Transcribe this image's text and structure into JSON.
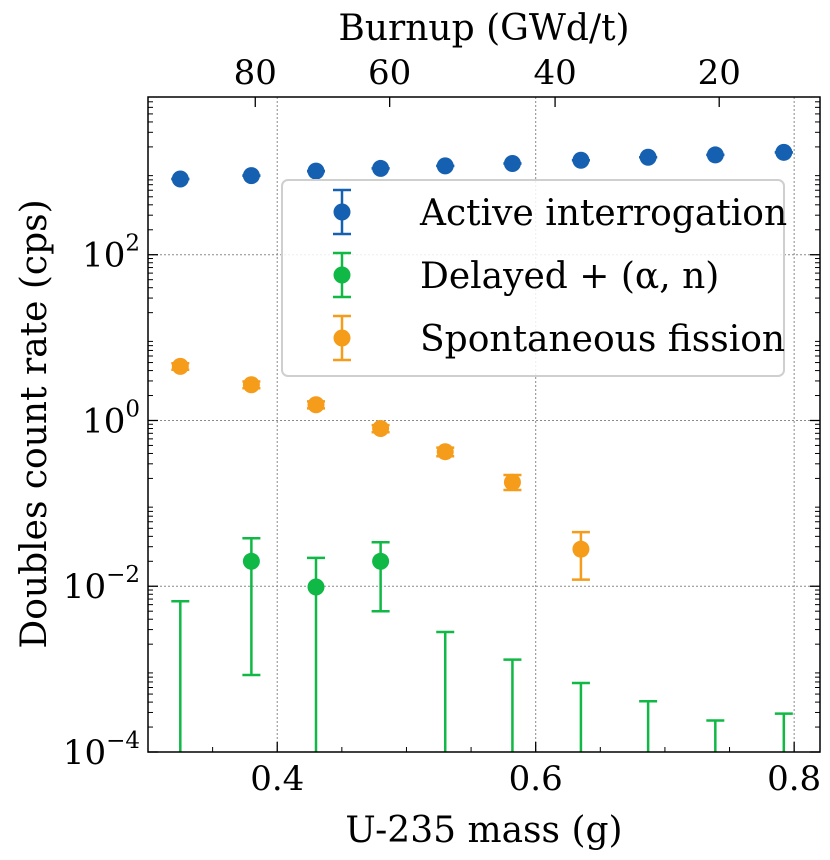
{
  "chart_data": {
    "type": "scatter",
    "xlabel": "U-235 mass (g)",
    "ylabel": "Doubles count rate (cps)",
    "top_xlabel": "Burnup (GWd/t)",
    "x_scale": "linear",
    "y_scale": "log",
    "xlim": [
      0.3,
      0.82
    ],
    "ylim": [
      0.0001,
      8000
    ],
    "grid": true,
    "legend_position": "upper-right",
    "x_ticks": [
      0.4,
      0.6,
      0.8
    ],
    "x_tick_labels": [
      "0.4",
      "0.6",
      "0.8"
    ],
    "y_ticks": [
      0.0001,
      0.01,
      1,
      100
    ],
    "y_tick_labels": [
      {
        "base": "10",
        "exp": "−4"
      },
      {
        "base": "10",
        "exp": "−2"
      },
      {
        "base": "10",
        "exp": "0"
      },
      {
        "base": "10",
        "exp": "2"
      }
    ],
    "top_ticks": [
      {
        "x": 0.383,
        "label": "80"
      },
      {
        "x": 0.487,
        "label": "60"
      },
      {
        "x": 0.615,
        "label": "40"
      },
      {
        "x": 0.742,
        "label": "20"
      }
    ],
    "series": [
      {
        "name": "Active interrogation",
        "color": "#1560b0",
        "points": [
          {
            "x": 0.325,
            "y": 820,
            "lo": 820,
            "hi": 820
          },
          {
            "x": 0.38,
            "y": 900,
            "lo": 900,
            "hi": 900
          },
          {
            "x": 0.43,
            "y": 1020,
            "lo": 1020,
            "hi": 1020
          },
          {
            "x": 0.48,
            "y": 1100,
            "lo": 1100,
            "hi": 1100
          },
          {
            "x": 0.53,
            "y": 1180,
            "lo": 1180,
            "hi": 1180
          },
          {
            "x": 0.582,
            "y": 1260,
            "lo": 1260,
            "hi": 1260
          },
          {
            "x": 0.635,
            "y": 1380,
            "lo": 1380,
            "hi": 1380
          },
          {
            "x": 0.687,
            "y": 1500,
            "lo": 1500,
            "hi": 1500
          },
          {
            "x": 0.739,
            "y": 1600,
            "lo": 1600,
            "hi": 1600
          },
          {
            "x": 0.792,
            "y": 1720,
            "lo": 1720,
            "hi": 1720
          }
        ]
      },
      {
        "name": "Delayed + (α, n)",
        "color": "#10b845",
        "points": [
          {
            "x": 0.325,
            "y": null,
            "lo": null,
            "hi": 0.0066
          },
          {
            "x": 0.38,
            "y": 0.02,
            "lo": 0.00085,
            "hi": 0.038
          },
          {
            "x": 0.43,
            "y": 0.0098,
            "lo": null,
            "hi": 0.022
          },
          {
            "x": 0.48,
            "y": 0.02,
            "lo": 0.005,
            "hi": 0.034
          },
          {
            "x": 0.53,
            "y": null,
            "lo": null,
            "hi": 0.0028
          },
          {
            "x": 0.582,
            "y": null,
            "lo": null,
            "hi": 0.0013
          },
          {
            "x": 0.635,
            "y": null,
            "lo": null,
            "hi": 0.00068
          },
          {
            "x": 0.687,
            "y": null,
            "lo": null,
            "hi": 0.00041
          },
          {
            "x": 0.739,
            "y": null,
            "lo": null,
            "hi": 0.00024
          },
          {
            "x": 0.792,
            "y": null,
            "lo": null,
            "hi": 0.00029
          }
        ]
      },
      {
        "name": "Spontaneous fission",
        "color": "#f59c1a",
        "points": [
          {
            "x": 0.325,
            "y": 4.5,
            "lo": 4.1,
            "hi": 4.9
          },
          {
            "x": 0.38,
            "y": 2.7,
            "lo": 2.45,
            "hi": 2.95
          },
          {
            "x": 0.43,
            "y": 1.55,
            "lo": 1.4,
            "hi": 1.7
          },
          {
            "x": 0.48,
            "y": 0.8,
            "lo": 0.72,
            "hi": 0.88
          },
          {
            "x": 0.53,
            "y": 0.42,
            "lo": 0.37,
            "hi": 0.47
          },
          {
            "x": 0.582,
            "y": 0.18,
            "lo": 0.145,
            "hi": 0.22
          },
          {
            "x": 0.635,
            "y": 0.028,
            "lo": 0.012,
            "hi": 0.045
          }
        ]
      }
    ]
  }
}
